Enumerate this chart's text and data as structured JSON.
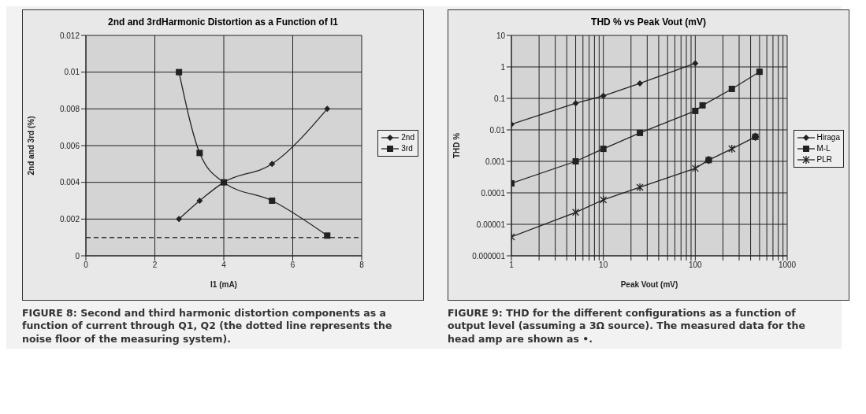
{
  "chart_data": [
    {
      "type": "line",
      "title": "2nd and 3rdHarmonic Distortion as a Function of I1",
      "xlabel": "I1 (mA)",
      "ylabel": "2nd and 3rd (%)",
      "xlim": [
        0,
        8
      ],
      "xticks": [
        0,
        2,
        4,
        6,
        8
      ],
      "ylim": [
        0,
        0.012
      ],
      "yticks": [
        0,
        0.002,
        0.004,
        0.006,
        0.008,
        0.01,
        0.012
      ],
      "grid": true,
      "legend": "right",
      "x": [
        2.7,
        3.3,
        4,
        5.4,
        7
      ],
      "series": [
        {
          "name": "2nd",
          "color": "#222222",
          "marker": "diamond",
          "values": [
            0.002,
            0.003,
            0.004,
            0.005,
            0.008
          ]
        },
        {
          "name": "3rd",
          "color": "#222222",
          "marker": "square",
          "values": [
            0.01,
            0.0056,
            0.004,
            0.003,
            0.0011
          ]
        }
      ],
      "ref_lines": [
        {
          "axis": "y",
          "value": 0.001,
          "line_style": "dashed",
          "color": "#333333"
        }
      ],
      "annotations": [
        "FIGURE 8: Second and third harmonic distortion components as a function of current through Q1, Q2 (the dotted line represents the noise floor of the measuring system)."
      ]
    },
    {
      "type": "line",
      "title": "THD % vs Peak Vout (mV)",
      "xlabel": "Peak Vout (mV)",
      "ylabel": "THD %",
      "log": "xy",
      "xlim": [
        1,
        1000
      ],
      "ylim": [
        1e-06,
        10
      ],
      "xticks": [
        1,
        {
          "value": 2,
          "label": null
        },
        {
          "value": 3,
          "label": null
        },
        {
          "value": 4,
          "label": null
        },
        {
          "value": 5,
          "label": null
        },
        {
          "value": 6,
          "label": null
        },
        {
          "value": 7,
          "label": null
        },
        {
          "value": 8,
          "label": null
        },
        {
          "value": 9,
          "label": null
        },
        10,
        {
          "value": 20,
          "label": null
        },
        {
          "value": 30,
          "label": null
        },
        {
          "value": 40,
          "label": null
        },
        {
          "value": 50,
          "label": null
        },
        {
          "value": 60,
          "label": null
        },
        {
          "value": 70,
          "label": null
        },
        {
          "value": 80,
          "label": null
        },
        {
          "value": 90,
          "label": null
        },
        100,
        {
          "value": 200,
          "label": null
        },
        {
          "value": 300,
          "label": null
        },
        {
          "value": 400,
          "label": null
        },
        {
          "value": 500,
          "label": null
        },
        {
          "value": 600,
          "label": null
        },
        {
          "value": 700,
          "label": null
        },
        {
          "value": 800,
          "label": null
        },
        {
          "value": 900,
          "label": null
        },
        1000
      ],
      "yticks": [
        {
          "value": 1e-06,
          "label": "0.000001"
        },
        {
          "value": 1e-05,
          "label": "0.00001"
        },
        0.0001,
        0.001,
        0.01,
        0.1,
        1,
        10
      ],
      "grid": true,
      "legend": "right",
      "series": [
        {
          "name": "Hiraga",
          "color": "#222222",
          "marker": "diamond",
          "x": [
            1,
            5,
            10,
            25,
            100
          ],
          "values": [
            0.015,
            0.07,
            0.12,
            0.3,
            1.3
          ]
        },
        {
          "name": "M-L",
          "color": "#222222",
          "marker": "square",
          "x": [
            1,
            5,
            10,
            25,
            100,
            120,
            250,
            500
          ],
          "values": [
            0.0002,
            0.001,
            0.0025,
            0.008,
            0.04,
            0.06,
            0.2,
            0.7
          ]
        },
        {
          "name": "PLR",
          "color": "#222222",
          "marker": "cross",
          "x": [
            1,
            5,
            10,
            25,
            100,
            140,
            250,
            450
          ],
          "values": [
            4e-06,
            2.4e-05,
            6e-05,
            0.00015,
            0.0006,
            0.0011,
            0.0025,
            0.006
          ]
        },
        {
          "type": "scatter",
          "color": "#222222",
          "marker": "circle",
          "x": [
            140,
            450
          ],
          "values": [
            0.0011,
            0.006
          ]
        }
      ],
      "annotations": [
        "FIGURE 9: THD for the different configurations as a function of output level (assuming a 3Ω source). The measured data for the head amp are shown as •."
      ]
    }
  ]
}
